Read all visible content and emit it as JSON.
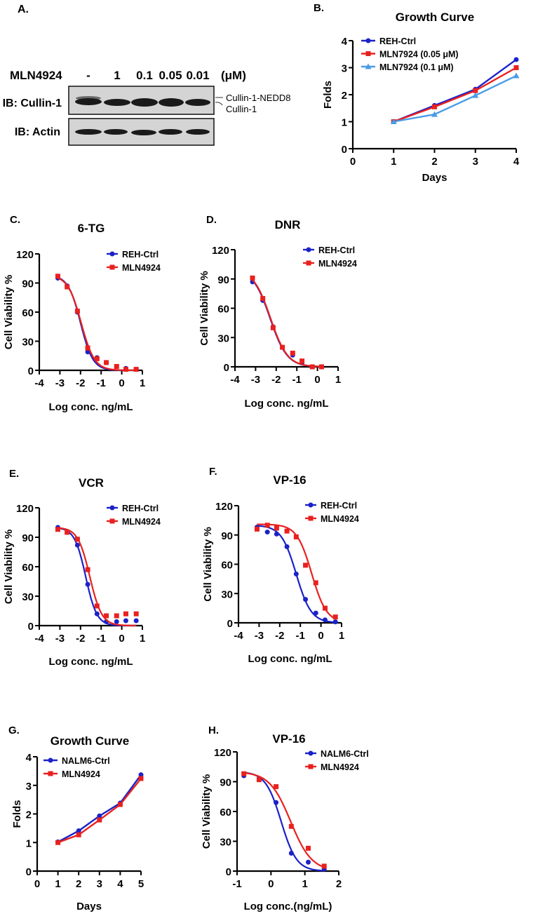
{
  "colors": {
    "blue": "#1b22c8",
    "red": "#e8211f",
    "lightblue": "#4a9be6",
    "blot_bg": "#d4d4d4",
    "band": "#1a1a1a"
  },
  "panel_a": {
    "letter": "A.",
    "treatment_label": "MLN4924",
    "lanes": [
      "-",
      "1",
      "0.1",
      "0.05",
      "0.01"
    ],
    "unit": "(μM)",
    "blots": [
      {
        "label": "IB: Cullin-1",
        "bands": [
          "Cullin-1-NEDD8",
          "Cullin-1"
        ]
      },
      {
        "label": "IB: Actin",
        "bands": []
      }
    ]
  },
  "chart_data": [
    {
      "id": "B",
      "letter": "B.",
      "type": "line",
      "title": "Growth Curve",
      "xlabel": "Days",
      "ylabel": "Folds",
      "xlim": [
        0,
        4
      ],
      "ylim": [
        0,
        4
      ],
      "xticks": [
        "0",
        "1",
        "2",
        "3",
        "4"
      ],
      "yticks": [
        "0",
        "1",
        "2",
        "3",
        "4"
      ],
      "legend": "top-left",
      "series": [
        {
          "name": "REH-Ctrl",
          "color": "blue",
          "marker": "circle",
          "x": [
            1,
            2,
            3,
            4
          ],
          "y": [
            1.0,
            1.6,
            2.2,
            3.3
          ]
        },
        {
          "name": "MLN7924 (0.05 μM)",
          "color": "red",
          "marker": "square",
          "x": [
            1,
            2,
            3,
            4
          ],
          "y": [
            1.0,
            1.55,
            2.15,
            3.0
          ]
        },
        {
          "name": "MLN7924 (0.1 μM)",
          "color": "lightblue",
          "marker": "triangle",
          "x": [
            1,
            2,
            3,
            4
          ],
          "y": [
            1.0,
            1.27,
            1.97,
            2.7
          ]
        }
      ]
    },
    {
      "id": "C",
      "letter": "C.",
      "type": "scatter",
      "title": "6-TG",
      "xlabel": "Log conc. ng/mL",
      "ylabel": "Cell Viability %",
      "xlim": [
        -4,
        1
      ],
      "ylim": [
        0,
        120
      ],
      "xticks": [
        "-4",
        "-3",
        "-2",
        "-1",
        "0",
        "1"
      ],
      "yticks": [
        "0",
        "30",
        "60",
        "90",
        "120"
      ],
      "legend": "top-right",
      "series": [
        {
          "name": "REH-Ctrl",
          "color": "blue",
          "marker": "circle",
          "x": [
            -3.1,
            -2.65,
            -2.15,
            -1.65,
            -1.2,
            -0.75,
            -0.25,
            0.2,
            0.7
          ],
          "y": [
            95,
            87,
            60,
            19,
            13,
            8,
            4,
            2,
            1
          ],
          "fit": {
            "top": 98,
            "bottom": 0,
            "logIC50": -2.0,
            "hill": 1.45
          }
        },
        {
          "name": "MLN4924",
          "color": "red",
          "marker": "square",
          "x": [
            -3.1,
            -2.65,
            -2.15,
            -1.65,
            -1.2,
            -0.75,
            -0.25,
            0.2,
            0.7
          ],
          "y": [
            97,
            86,
            61,
            23,
            12,
            8,
            4,
            1,
            1
          ],
          "fit": {
            "top": 98,
            "bottom": 0,
            "logIC50": -1.97,
            "hill": 1.35
          }
        }
      ]
    },
    {
      "id": "D",
      "letter": "D.",
      "type": "scatter",
      "title": "DNR",
      "xlabel": "Log conc. ng/mL",
      "ylabel": "Cell Viability %",
      "xlim": [
        -4,
        1
      ],
      "ylim": [
        0,
        120
      ],
      "xticks": [
        "-4",
        "-3",
        "-2",
        "-1",
        "0",
        "1"
      ],
      "yticks": [
        "0",
        "30",
        "60",
        "90",
        "120"
      ],
      "legend": "top-right",
      "series": [
        {
          "name": "REH-Ctrl",
          "color": "blue",
          "marker": "circle",
          "x": [
            -3.15,
            -2.65,
            -2.15,
            -1.7,
            -1.2,
            -0.75,
            -0.25,
            0.2
          ],
          "y": [
            87,
            68,
            41,
            20,
            12,
            4,
            0,
            0
          ],
          "fit": {
            "top": 100,
            "bottom": 0,
            "logIC50": -2.3,
            "hill": 1.05
          }
        },
        {
          "name": "MLN4924",
          "color": "red",
          "marker": "square",
          "x": [
            -3.15,
            -2.65,
            -2.15,
            -1.7,
            -1.2,
            -0.75,
            -0.25,
            0.2
          ],
          "y": [
            91,
            70,
            40,
            20,
            14,
            6,
            0,
            0
          ],
          "fit": {
            "top": 100,
            "bottom": 0,
            "logIC50": -2.28,
            "hill": 1.05
          }
        }
      ]
    },
    {
      "id": "E",
      "letter": "E.",
      "type": "scatter",
      "title": "VCR",
      "xlabel": "Log conc. ng/mL",
      "ylabel": "Cell Viability %",
      "xlim": [
        -4,
        1
      ],
      "ylim": [
        0,
        120
      ],
      "xticks": [
        "-4",
        "-3",
        "-2",
        "-1",
        "0",
        "1"
      ],
      "yticks": [
        "0",
        "30",
        "60",
        "90",
        "120"
      ],
      "legend": "top-right",
      "series": [
        {
          "name": "REH-Ctrl",
          "color": "blue",
          "marker": "circle",
          "x": [
            -3.1,
            -2.65,
            -2.15,
            -1.65,
            -1.2,
            -0.75,
            -0.25,
            0.2,
            0.7
          ],
          "y": [
            100,
            95,
            82,
            42,
            12,
            4,
            4,
            5,
            5
          ],
          "fit": {
            "top": 100,
            "bottom": 0,
            "logIC50": -1.75,
            "hill": 1.6
          }
        },
        {
          "name": "MLN4924",
          "color": "red",
          "marker": "square",
          "x": [
            -3.1,
            -2.65,
            -2.15,
            -1.65,
            -1.2,
            -0.75,
            -0.25,
            0.2,
            0.7
          ],
          "y": [
            98,
            95,
            88,
            57,
            20,
            10,
            10,
            12,
            12
          ],
          "fit": {
            "top": 100,
            "bottom": 0,
            "logIC50": -1.55,
            "hill": 1.5
          }
        }
      ]
    },
    {
      "id": "F",
      "letter": "F.",
      "type": "scatter",
      "title": "VP-16",
      "xlabel": "Log conc. ng/mL",
      "ylabel": "Cell Viability %",
      "xlim": [
        -4,
        1
      ],
      "ylim": [
        0,
        120
      ],
      "xticks": [
        "-4",
        "-3",
        "-2",
        "-1",
        "0",
        "1"
      ],
      "yticks": [
        "0",
        "30",
        "60",
        "90",
        "120"
      ],
      "legend": "top-right",
      "series": [
        {
          "name": "REH-Ctrl",
          "color": "blue",
          "marker": "circle",
          "x": [
            -3.1,
            -2.6,
            -2.15,
            -1.65,
            -1.2,
            -0.75,
            -0.25,
            0.2,
            0.7
          ],
          "y": [
            98,
            93,
            91,
            78,
            50,
            24,
            10,
            3,
            1
          ],
          "fit": {
            "top": 100,
            "bottom": 0,
            "logIC50": -1.2,
            "hill": 1.2
          }
        },
        {
          "name": "MLN4924",
          "color": "red",
          "marker": "square",
          "x": [
            -3.1,
            -2.6,
            -2.15,
            -1.65,
            -1.2,
            -0.75,
            -0.25,
            0.2,
            0.7
          ],
          "y": [
            96,
            100,
            97,
            94,
            88,
            59,
            41,
            15,
            6
          ],
          "fit": {
            "top": 101,
            "bottom": 0,
            "logIC50": -0.45,
            "hill": 1.2
          }
        }
      ]
    },
    {
      "id": "G",
      "letter": "G.",
      "type": "line",
      "title": "Growth Curve",
      "xlabel": "Days",
      "ylabel": "Folds",
      "xlim": [
        0,
        5
      ],
      "ylim": [
        0,
        4
      ],
      "xticks": [
        "0",
        "1",
        "2",
        "3",
        "4",
        "5"
      ],
      "yticks": [
        "0",
        "1",
        "2",
        "3",
        "4"
      ],
      "legend": "top-left",
      "series": [
        {
          "name": "NALM6-Ctrl",
          "color": "blue",
          "marker": "circle",
          "x": [
            1,
            2,
            3,
            4,
            5
          ],
          "y": [
            1.02,
            1.41,
            1.93,
            2.38,
            3.37
          ]
        },
        {
          "name": "MLN4924",
          "color": "red",
          "marker": "square",
          "x": [
            1,
            2,
            3,
            4,
            5
          ],
          "y": [
            1.0,
            1.27,
            1.79,
            2.33,
            3.24
          ]
        }
      ]
    },
    {
      "id": "H",
      "letter": "H.",
      "type": "scatter",
      "title": "VP-16",
      "xlabel": "Log conc.(ng/mL)",
      "ylabel": "Cell Viability %",
      "xlim": [
        -1,
        2
      ],
      "ylim": [
        0,
        120
      ],
      "xticks": [
        "-1",
        "0",
        "1",
        "2"
      ],
      "yticks": [
        "0",
        "30",
        "60",
        "90",
        "120"
      ],
      "legend": "top-right",
      "series": [
        {
          "name": "NALM6-Ctrl",
          "color": "blue",
          "marker": "circle",
          "x": [
            -0.8,
            -0.35,
            0.15,
            0.6,
            1.1,
            1.57
          ],
          "y": [
            96,
            93,
            69,
            18,
            9,
            2
          ],
          "fit": {
            "top": 100,
            "bottom": 0,
            "logIC50": 0.3,
            "hill": 1.9
          }
        },
        {
          "name": "MLN4924",
          "color": "red",
          "marker": "square",
          "x": [
            -0.8,
            -0.35,
            0.15,
            0.6,
            1.1,
            1.57
          ],
          "y": [
            98,
            92,
            85,
            45,
            23,
            5
          ],
          "fit": {
            "top": 100,
            "bottom": 0,
            "logIC50": 0.58,
            "hill": 1.4
          }
        }
      ]
    }
  ]
}
